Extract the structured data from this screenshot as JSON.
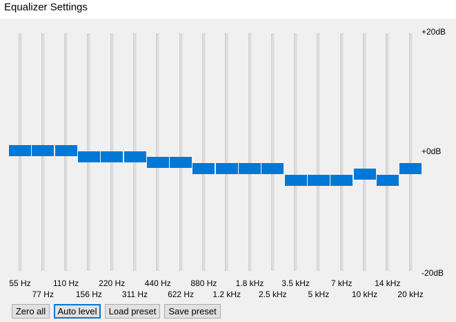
{
  "window": {
    "title": "Equalizer Settings"
  },
  "scale": {
    "max_label": "+20dB",
    "mid_label": "+0dB",
    "min_label": "-20dB",
    "max_db": 20,
    "min_db": -20
  },
  "bands": [
    {
      "freq": "55 Hz",
      "gain_db": 0
    },
    {
      "freq": "77 Hz",
      "gain_db": 0
    },
    {
      "freq": "110 Hz",
      "gain_db": 0
    },
    {
      "freq": "156 Hz",
      "gain_db": -1
    },
    {
      "freq": "220 Hz",
      "gain_db": -1
    },
    {
      "freq": "311 Hz",
      "gain_db": -1
    },
    {
      "freq": "440 Hz",
      "gain_db": -2
    },
    {
      "freq": "622 Hz",
      "gain_db": -2
    },
    {
      "freq": "880 Hz",
      "gain_db": -3
    },
    {
      "freq": "1.2 kHz",
      "gain_db": -3
    },
    {
      "freq": "1.8 kHz",
      "gain_db": -3
    },
    {
      "freq": "2.5 kHz",
      "gain_db": -3
    },
    {
      "freq": "3.5 kHz",
      "gain_db": -5
    },
    {
      "freq": "5 kHz",
      "gain_db": -5
    },
    {
      "freq": "7 kHz",
      "gain_db": -5
    },
    {
      "freq": "10 kHz",
      "gain_db": -4
    },
    {
      "freq": "14 kHz",
      "gain_db": -5
    },
    {
      "freq": "20 kHz",
      "gain_db": -3
    }
  ],
  "buttons": {
    "zero_all": "Zero all",
    "auto_level": "Auto level",
    "load_preset": "Load preset",
    "save_preset": "Save preset"
  },
  "colors": {
    "accent": "#0078d7",
    "track": "#dcdcdc",
    "panel": "#f0f0f0"
  }
}
